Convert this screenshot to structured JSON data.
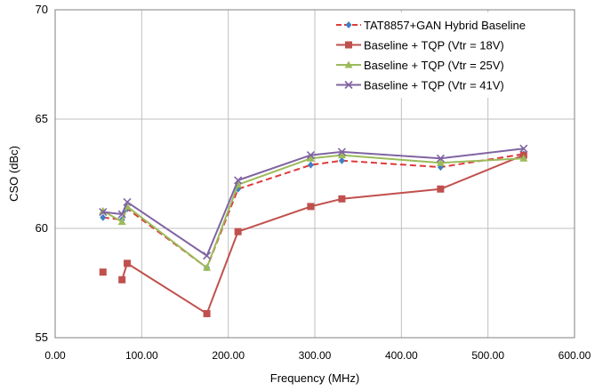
{
  "chart_data": {
    "type": "line",
    "title": "",
    "xlabel": "Frequency (MHz)",
    "ylabel": "CSO (dBc)",
    "xlim": [
      0,
      600
    ],
    "ylim": [
      55,
      70
    ],
    "x_ticks": [
      0,
      100,
      200,
      300,
      400,
      500,
      600
    ],
    "x_tick_labels": [
      "0.00",
      "100.00",
      "200.00",
      "300.00",
      "400.00",
      "500.00",
      "600.00"
    ],
    "y_ticks": [
      55,
      60,
      65,
      70
    ],
    "y_tick_labels": [
      "55",
      "60",
      "65",
      "70"
    ],
    "grid": true,
    "legend_position": "top-right",
    "series": [
      {
        "name": "TAT8857+GAN Hybrid Baseline",
        "color": "#e03a3a",
        "marker": "diamond",
        "marker_color": "#3f7fc4",
        "dashed": true,
        "segments": [
          [
            [
              55.25,
              60.5
            ],
            [
              77.25,
              60.4
            ],
            [
              83.25,
              60.9
            ],
            [
              175.25,
              58.2
            ],
            [
              211.25,
              61.8
            ],
            [
              295.25,
              62.9
            ],
            [
              331.25,
              63.1
            ],
            [
              445.25,
              62.8
            ],
            [
              541.25,
              63.4
            ]
          ]
        ]
      },
      {
        "name": "Baseline + TQP (Vtr = 18V)",
        "color": "#c0504d",
        "marker": "square",
        "dashed": false,
        "segments": [
          [
            [
              55.25,
              58.0
            ]
          ],
          [
            [
              77.25,
              57.65
            ],
            [
              83.25,
              58.4
            ],
            [
              175.25,
              56.1
            ],
            [
              211.25,
              59.85
            ],
            [
              295.25,
              61.0
            ],
            [
              331.25,
              61.35
            ],
            [
              445.25,
              61.8
            ],
            [
              541.25,
              63.35
            ]
          ]
        ]
      },
      {
        "name": "Baseline + TQP (Vtr = 25V)",
        "color": "#9bbb59",
        "marker": "triangle",
        "dashed": false,
        "segments": [
          [
            [
              55.25,
              60.8
            ],
            [
              77.25,
              60.3
            ],
            [
              83.25,
              61.0
            ],
            [
              175.25,
              58.2
            ],
            [
              211.25,
              62.0
            ],
            [
              295.25,
              63.2
            ],
            [
              331.25,
              63.35
            ],
            [
              445.25,
              63.0
            ],
            [
              541.25,
              63.2
            ]
          ]
        ]
      },
      {
        "name": "Baseline + TQP (Vtr = 41V)",
        "color": "#8064a2",
        "marker": "x",
        "dashed": false,
        "segments": [
          [
            [
              55.25,
              60.75
            ],
            [
              77.25,
              60.65
            ],
            [
              83.25,
              61.2
            ],
            [
              175.25,
              58.75
            ],
            [
              211.25,
              62.2
            ],
            [
              295.25,
              63.35
            ],
            [
              331.25,
              63.5
            ],
            [
              445.25,
              63.2
            ],
            [
              541.25,
              63.65
            ]
          ]
        ]
      }
    ]
  }
}
